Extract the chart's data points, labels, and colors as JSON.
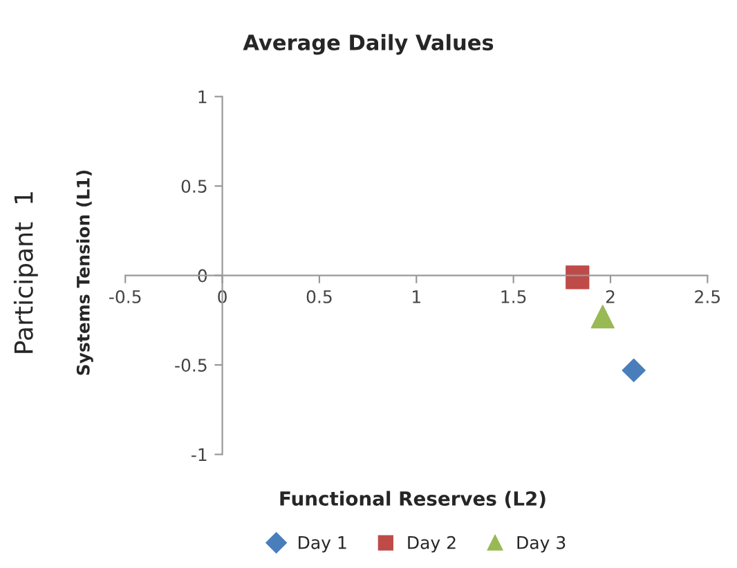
{
  "chart_data": {
    "type": "scatter",
    "title": "Average Daily Values",
    "xlabel": "Functional Reserves (L2)",
    "ylabel": "Systems Tension (L1)",
    "annotations": [
      "Participant  1"
    ],
    "series": [
      {
        "name": "Day 1",
        "color": "#4a7ebb",
        "marker": "diamond",
        "x": [
          2.12
        ],
        "values": [
          -0.53
        ]
      },
      {
        "name": "Day 2",
        "color": "#be4b48",
        "marker": "square",
        "x": [
          1.83
        ],
        "values": [
          -0.01
        ]
      },
      {
        "name": "Day 3",
        "color": "#98b954",
        "marker": "triangle",
        "x": [
          1.96
        ],
        "values": [
          -0.23
        ]
      }
    ],
    "xlim": [
      -0.5,
      2.5
    ],
    "xticks": [
      -0.5,
      0,
      0.5,
      1,
      1.5,
      2,
      2.5
    ],
    "ylim": [
      -1,
      1
    ],
    "yticks": [
      -1,
      -0.5,
      0,
      0.5,
      1
    ],
    "grid": false,
    "legend": "bottom"
  }
}
